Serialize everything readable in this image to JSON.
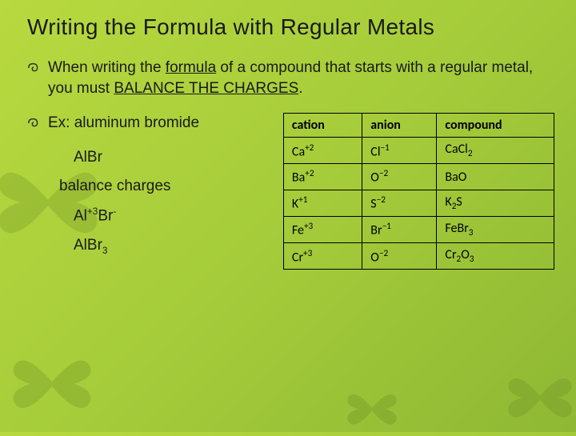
{
  "title": "Writing the Formula with Regular Metals",
  "bullet1_pre": "When writing the ",
  "bullet1_u1": "formula",
  "bullet1_mid": " of a compound that starts with a regular metal, you must ",
  "bullet1_u2": "BALANCE THE CHARGES",
  "bullet1_end": ".",
  "bullet2": "Ex: aluminum bromide",
  "ex_line1": "AlBr",
  "ex_line2": "balance charges",
  "ex_line3_a": "Al",
  "ex_line3_sup": "+3",
  "ex_line3_b": "Br",
  "ex_line3_sup2": "-",
  "ex_line4_a": "AlBr",
  "ex_line4_sub": "3",
  "table": {
    "headers": {
      "c1": "cation",
      "c2": "anion",
      "c3": "compound"
    },
    "rows": [
      {
        "cation": "Ca",
        "cation_sup": "+2",
        "anion": "Cl",
        "anion_sup": "−1",
        "compound": "CaCl",
        "compound_sub": "2"
      },
      {
        "cation": "Ba",
        "cation_sup": "+2",
        "anion": "O",
        "anion_sup": "−2",
        "compound": "BaO",
        "compound_sub": ""
      },
      {
        "cation": "K",
        "cation_sup": "+1",
        "anion": "S",
        "anion_sup": "−2",
        "compound": "K",
        "compound_sub": "2",
        "compound_tail": "S"
      },
      {
        "cation": "Fe",
        "cation_sup": "+3",
        "anion": "Br",
        "anion_sup": "−1",
        "compound": "FeBr",
        "compound_sub": "3"
      },
      {
        "cation": "Cr",
        "cation_sup": "+3",
        "anion": "O",
        "anion_sup": "−2",
        "compound": "Cr",
        "compound_sub": "2",
        "compound_tail": "O",
        "compound_sub2": "3"
      }
    ]
  },
  "colors": {
    "text": "#1a1a1a",
    "border": "#000000",
    "bg_gradient_start": "#b8d93f",
    "bg_gradient_end": "#8fb834",
    "butterfly": "#6b8e23"
  },
  "fontsize": {
    "title": 28,
    "body": 19,
    "table": 16
  }
}
